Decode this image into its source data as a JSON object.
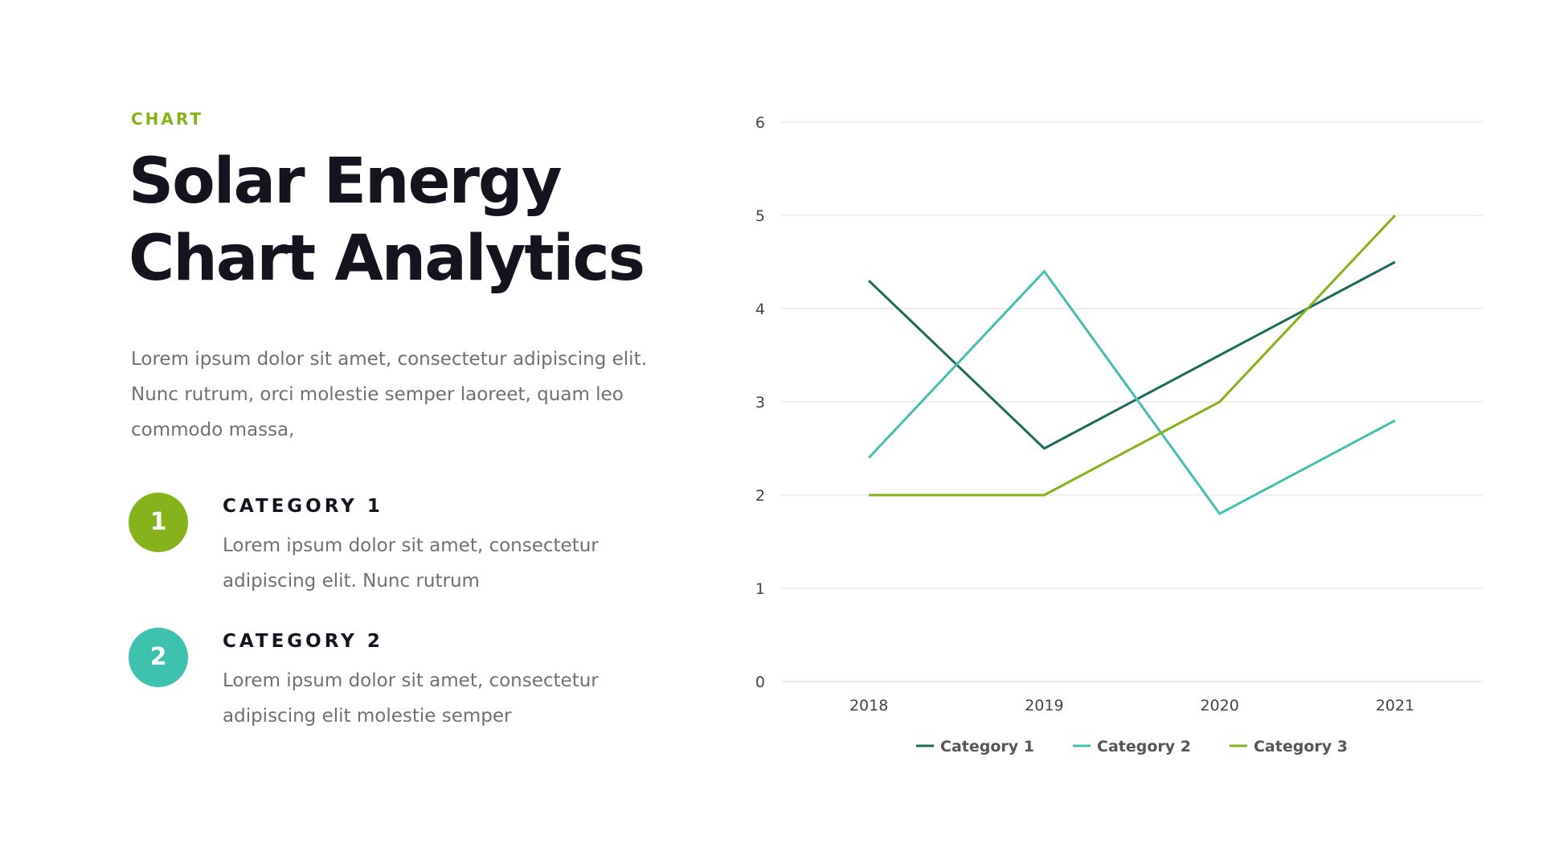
{
  "eyebrow": "CHART",
  "title": {
    "line1": "Solar Energy",
    "line2": "Chart Analytics"
  },
  "intro": "Lorem ipsum dolor sit amet, consectetur adipiscing elit. Nunc rutrum, orci molestie semper laoreet, quam leo commodo massa,",
  "categories": [
    {
      "number": "1",
      "title": "CATEGORY 1",
      "desc": "Lorem ipsum dolor sit amet, consectetur adipiscing elit. Nunc rutrum"
    },
    {
      "number": "2",
      "title": "CATEGORY 2",
      "desc": "Lorem ipsum dolor sit amet, consectetur adipiscing elit molestie semper"
    }
  ],
  "colors": {
    "accent_green": "#86b21c",
    "accent_teal": "#3ec2ad",
    "title_text": "#14141f",
    "body_text": "#707070"
  },
  "chart_data": {
    "type": "line",
    "title": "",
    "xlabel": "",
    "ylabel": "",
    "categories": [
      "2018",
      "2019",
      "2020",
      "2021"
    ],
    "ylim": [
      0,
      6
    ],
    "yticks": [
      "0",
      "1",
      "2",
      "3",
      "4",
      "5",
      "6"
    ],
    "grid": true,
    "legend_position": "bottom",
    "series": [
      {
        "name": "Category 1",
        "values": [
          4.3,
          2.5,
          3.5,
          4.5
        ],
        "color": "#1f6b59"
      },
      {
        "name": "Category 2",
        "values": [
          2.4,
          4.4,
          1.8,
          2.8
        ],
        "color": "#44bfaf"
      },
      {
        "name": "Category 3",
        "values": [
          2.0,
          2.0,
          3.0,
          5.0
        ],
        "color": "#86b21c"
      }
    ]
  }
}
